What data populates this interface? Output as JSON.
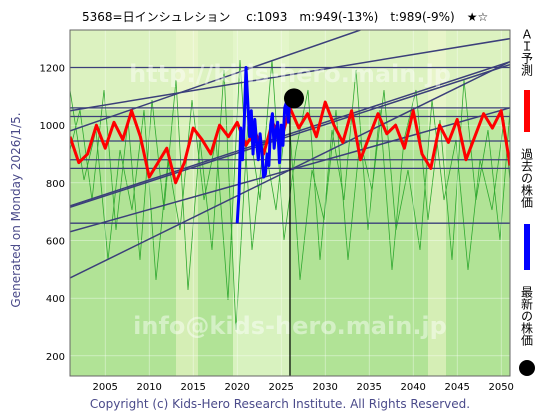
{
  "title": "5368=日インシュレション　 c:1093　m:949(-13%)　t:989(-9%)　★☆",
  "side_label": "Generated on Monday 2026/1/5.",
  "copyright": "Copyright (c) Kids-Hero Research Institute. All Rights Reserved.",
  "watermarks": [
    "http://kids-hero.main.jp",
    "info@kids-hero.main.jp"
  ],
  "legend": [
    {
      "label": "ＡＩ予測",
      "color": "#ff0000"
    },
    {
      "label": "過去の株価",
      "color": "#0000ff"
    },
    {
      "label": "最新の株価",
      "color": "#000000"
    }
  ],
  "chart_data": {
    "type": "line",
    "title": "",
    "xlabel": "",
    "ylabel": "",
    "xlim": [
      2001,
      2051
    ],
    "ylim": [
      130,
      1330
    ],
    "x_ticks": [
      2005,
      2010,
      2015,
      2020,
      2025,
      2030,
      2035,
      2040,
      2045,
      2050
    ],
    "y_ticks": [
      200,
      400,
      600,
      800,
      1000,
      1200
    ],
    "current": {
      "year": 2026.0,
      "value": 1093
    },
    "horizontal_levels": [
      660,
      850,
      880,
      945,
      1030,
      1060,
      1200
    ],
    "trend_channels": [
      {
        "from": [
          2001,
          470
        ],
        "to": [
          2051,
          1220
        ]
      },
      {
        "from": [
          2001,
          630
        ],
        "to": [
          2051,
          1060
        ]
      },
      {
        "from": [
          2001,
          715
        ],
        "to": [
          2051,
          1210
        ]
      },
      {
        "from": [
          2001,
          720
        ],
        "to": [
          2051,
          1220
        ]
      },
      {
        "from": [
          2001,
          980
        ],
        "to": [
          2034,
          1330
        ]
      },
      {
        "from": [
          2001,
          1050
        ],
        "to": [
          2051,
          1300
        ]
      }
    ],
    "series": [
      {
        "name": "過去の株価",
        "color": "#0000ff",
        "x": [
          2020.0,
          2020.2,
          2020.4,
          2020.6,
          2020.8,
          2021.0,
          2021.2,
          2021.4,
          2021.6,
          2021.8,
          2022.0,
          2022.2,
          2022.4,
          2022.6,
          2022.8,
          2023.0,
          2023.2,
          2023.4,
          2023.6,
          2023.8,
          2024.0,
          2024.2,
          2024.4,
          2024.6,
          2024.8,
          2025.0,
          2025.2,
          2025.4,
          2025.6,
          2025.8,
          2026.0
        ],
        "y": [
          660,
          760,
          990,
          880,
          1010,
          1200,
          1080,
          960,
          1050,
          900,
          1020,
          940,
          880,
          970,
          910,
          820,
          830,
          900,
          860,
          1000,
          1040,
          920,
          980,
          1010,
          870,
          1000,
          930,
          1060,
          1080,
          1010,
          1093
        ]
      },
      {
        "name": "ＡＩ予測",
        "color": "#ff0000",
        "x": [
          2001,
          2002,
          2003,
          2004,
          2005,
          2006,
          2007,
          2008,
          2009,
          2010,
          2011,
          2012,
          2013,
          2014,
          2015,
          2016,
          2017,
          2018,
          2019,
          2020,
          2021,
          2022,
          2023,
          2024,
          2025,
          2026,
          2027,
          2028,
          2029,
          2030,
          2031,
          2032,
          2033,
          2034,
          2035,
          2036,
          2037,
          2038,
          2039,
          2040,
          2041,
          2042,
          2043,
          2044,
          2045,
          2046,
          2047,
          2048,
          2049,
          2050,
          2051
        ],
        "y": [
          960,
          870,
          900,
          1000,
          920,
          1010,
          950,
          1050,
          960,
          820,
          870,
          920,
          800,
          870,
          990,
          950,
          900,
          1000,
          960,
          1010,
          930,
          980,
          900,
          1010,
          950,
          1060,
          990,
          1040,
          960,
          1080,
          1000,
          940,
          1050,
          880,
          960,
          1040,
          970,
          1000,
          920,
          1050,
          900,
          850,
          1000,
          940,
          1020,
          880,
          960,
          1040,
          990,
          1050,
          860
        ]
      }
    ]
  }
}
